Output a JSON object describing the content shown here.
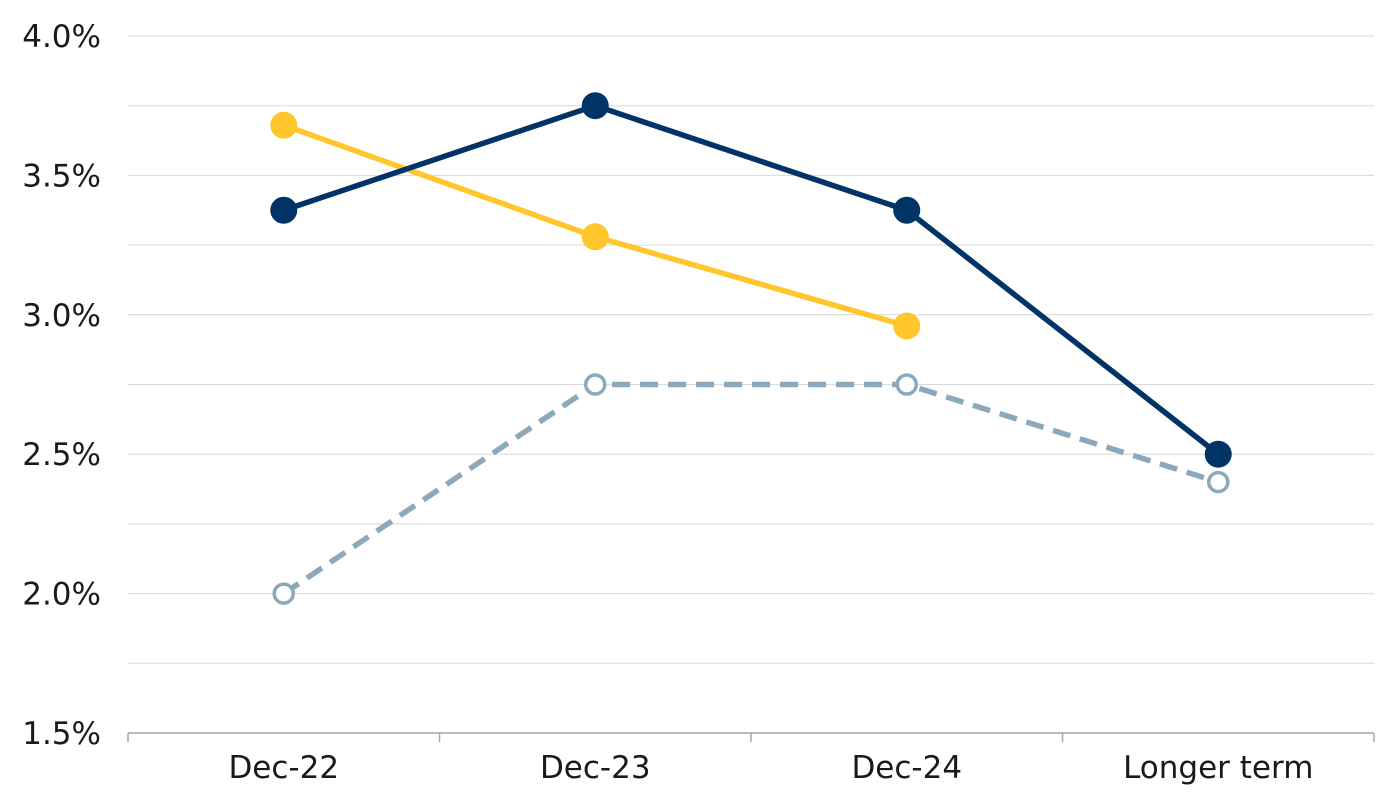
{
  "chart_data": {
    "type": "line",
    "title": "",
    "xlabel": "",
    "ylabel": "",
    "categories": [
      "Dec-22",
      "Dec-23",
      "Dec-24",
      "Longer term"
    ],
    "ylim": [
      1.5,
      4.0
    ],
    "yticks": [
      1.5,
      2.0,
      2.5,
      3.0,
      3.5,
      4.0
    ],
    "ytick_labels": [
      "1.5%",
      "2.0%",
      "2.5%",
      "3.0%",
      "3.5%",
      "4.0%"
    ],
    "grid": true,
    "legend": "none",
    "series": [
      {
        "values": [
          3.375,
          3.75,
          3.375,
          2.5
        ],
        "color": "#003366",
        "style": "solid",
        "marker": "filled-circle"
      },
      {
        "values": [
          3.68,
          3.28,
          2.96,
          null
        ],
        "color": "#ffc72c",
        "style": "solid",
        "marker": "filled-circle"
      },
      {
        "values": [
          2.0,
          2.75,
          2.75,
          2.4
        ],
        "color": "#8ba9bb",
        "style": "dashed",
        "marker": "hollow-circle"
      }
    ]
  }
}
